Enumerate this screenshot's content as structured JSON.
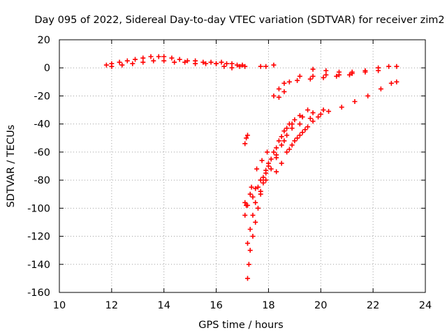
{
  "chart_data": {
    "type": "scatter",
    "title": "Day 095 of 2022, Sidereal Day-to-day VTEC variation (SDTVAR) for receiver zim2",
    "xlabel": "GPS time / hours",
    "ylabel": "SDTVAR / TECUs",
    "xlim": [
      10,
      24
    ],
    "ylim": [
      -160,
      20
    ],
    "xticks": [
      "10",
      "12",
      "14",
      "16",
      "18",
      "20",
      "22",
      "24"
    ],
    "yticks": [
      "20",
      "0",
      "-20",
      "-40",
      "-60",
      "-80",
      "-100",
      "-120",
      "-140",
      "-160"
    ],
    "grid": true,
    "marker": "+",
    "marker_color": "#ff0000",
    "series": [
      {
        "points": [
          [
            11.8,
            2
          ],
          [
            12.0,
            3
          ],
          [
            12.3,
            4
          ],
          [
            12.6,
            5
          ],
          [
            12.9,
            6
          ],
          [
            13.2,
            7
          ],
          [
            13.5,
            8
          ],
          [
            13.8,
            8
          ],
          [
            14.0,
            8
          ],
          [
            14.3,
            7
          ],
          [
            14.6,
            6
          ],
          [
            14.9,
            5
          ],
          [
            15.2,
            5
          ],
          [
            15.5,
            4
          ],
          [
            15.8,
            4
          ],
          [
            16.0,
            3
          ],
          [
            12.0,
            1
          ],
          [
            12.4,
            2
          ],
          [
            12.8,
            3
          ],
          [
            13.2,
            4
          ],
          [
            13.6,
            5
          ],
          [
            14.0,
            5
          ],
          [
            14.4,
            4
          ],
          [
            14.8,
            4
          ],
          [
            15.2,
            3
          ],
          [
            15.6,
            3
          ],
          [
            16.0,
            3
          ],
          [
            16.2,
            4
          ],
          [
            16.4,
            3
          ],
          [
            16.6,
            3
          ],
          [
            16.8,
            2
          ],
          [
            17.0,
            2
          ],
          [
            17.1,
            1
          ],
          [
            16.3,
            1
          ],
          [
            16.6,
            0
          ],
          [
            16.9,
            1
          ],
          [
            17.7,
            1
          ],
          [
            17.9,
            1
          ],
          [
            18.2,
            2
          ]
        ]
      },
      {
        "points": [
          [
            19.7,
            -1
          ],
          [
            20.2,
            -2
          ],
          [
            20.7,
            -3
          ],
          [
            21.2,
            -3
          ],
          [
            21.7,
            -2
          ],
          [
            22.2,
            0
          ],
          [
            22.6,
            1
          ],
          [
            22.9,
            1
          ],
          [
            19.2,
            -6
          ],
          [
            19.7,
            -6
          ],
          [
            20.2,
            -5
          ],
          [
            20.7,
            -5
          ],
          [
            21.2,
            -4
          ],
          [
            21.7,
            -3
          ],
          [
            22.2,
            -2
          ],
          [
            18.2,
            -20
          ],
          [
            18.4,
            -15
          ],
          [
            18.6,
            -11
          ],
          [
            18.8,
            -10
          ],
          [
            19.1,
            -9
          ],
          [
            19.6,
            -8
          ],
          [
            20.1,
            -7
          ],
          [
            20.6,
            -6
          ],
          [
            21.1,
            -5
          ],
          [
            18.4,
            -21
          ],
          [
            18.6,
            -17
          ]
        ]
      },
      {
        "points": [
          [
            17.2,
            -150
          ],
          [
            17.25,
            -140
          ],
          [
            17.3,
            -130
          ],
          [
            17.4,
            -120
          ],
          [
            17.5,
            -110
          ],
          [
            17.6,
            -100
          ],
          [
            17.7,
            -90
          ],
          [
            17.8,
            -82
          ],
          [
            17.9,
            -75
          ],
          [
            18.0,
            -68
          ],
          [
            18.2,
            -60
          ],
          [
            18.4,
            -52
          ],
          [
            18.6,
            -45
          ],
          [
            18.8,
            -40
          ],
          [
            19.0,
            -37
          ],
          [
            19.3,
            -35
          ],
          [
            19.7,
            -32
          ],
          [
            20.1,
            -30
          ],
          [
            17.2,
            -125
          ],
          [
            17.3,
            -115
          ],
          [
            17.4,
            -105
          ],
          [
            17.5,
            -96
          ],
          [
            17.7,
            -88
          ],
          [
            17.9,
            -80
          ],
          [
            18.1,
            -72
          ],
          [
            18.3,
            -64
          ],
          [
            18.5,
            -55
          ],
          [
            18.7,
            -48
          ],
          [
            18.9,
            -43
          ],
          [
            19.2,
            -40
          ],
          [
            19.6,
            -36
          ],
          [
            20.0,
            -33
          ],
          [
            17.1,
            -105
          ],
          [
            17.2,
            -98
          ],
          [
            17.4,
            -92
          ],
          [
            17.6,
            -85
          ],
          [
            17.8,
            -78
          ],
          [
            18.0,
            -70
          ],
          [
            18.3,
            -62
          ],
          [
            18.6,
            -52
          ],
          [
            18.9,
            -40
          ],
          [
            19.2,
            -34
          ],
          [
            19.5,
            -30
          ],
          [
            17.1,
            -96
          ],
          [
            17.3,
            -90
          ],
          [
            17.5,
            -86
          ],
          [
            17.7,
            -80
          ],
          [
            17.9,
            -73
          ],
          [
            18.1,
            -65
          ],
          [
            18.3,
            -57
          ],
          [
            18.5,
            -49
          ],
          [
            18.7,
            -43
          ],
          [
            17.15,
            -98
          ],
          [
            17.35,
            -85
          ],
          [
            17.55,
            -72
          ],
          [
            17.75,
            -66
          ],
          [
            17.95,
            -60
          ],
          [
            18.3,
            -74
          ],
          [
            18.5,
            -68
          ],
          [
            18.7,
            -60
          ],
          [
            18.9,
            -55
          ],
          [
            19.1,
            -50
          ],
          [
            19.3,
            -46
          ],
          [
            19.5,
            -42
          ],
          [
            19.7,
            -38
          ],
          [
            19.9,
            -35
          ],
          [
            20.3,
            -31
          ],
          [
            20.8,
            -28
          ],
          [
            21.3,
            -24
          ],
          [
            21.8,
            -20
          ],
          [
            22.3,
            -15
          ],
          [
            22.7,
            -11
          ],
          [
            22.9,
            -10
          ],
          [
            18.8,
            -58
          ],
          [
            19.0,
            -52
          ],
          [
            19.2,
            -48
          ],
          [
            19.4,
            -44
          ],
          [
            17.1,
            -54
          ],
          [
            17.15,
            -50
          ],
          [
            17.2,
            -48
          ]
        ]
      }
    ]
  }
}
